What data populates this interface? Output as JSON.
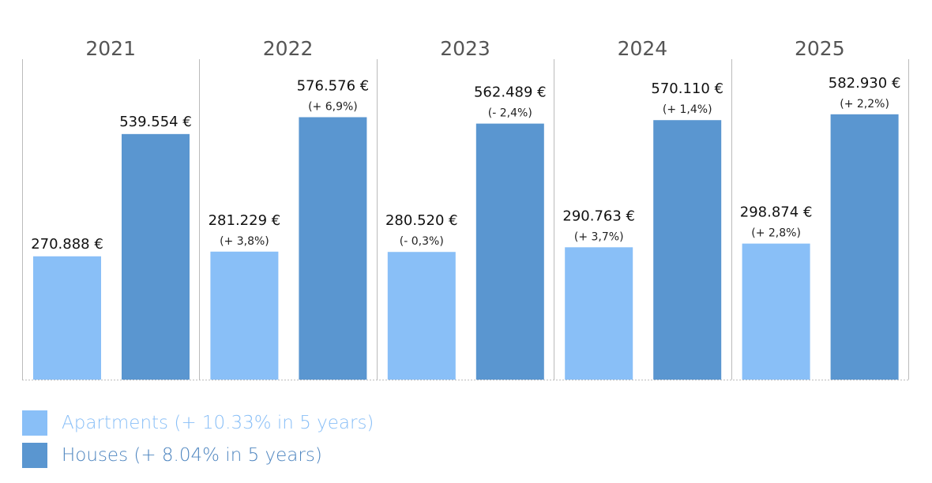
{
  "chart_data": {
    "type": "bar",
    "categories": [
      "2021",
      "2022",
      "2023",
      "2024",
      "2025"
    ],
    "series": [
      {
        "name": "Apartments (+ 10.33% in 5 years)",
        "values": [
          270888,
          281229,
          280520,
          290763,
          298874
        ],
        "labels": [
          "270.888 €",
          "281.229 €",
          "280.520 €",
          "290.763 €",
          "298.874 €"
        ],
        "changes": [
          "",
          "(+ 3,8%)",
          "(- 0,3%)",
          "(+ 3,7%)",
          "(+ 2,8%)"
        ],
        "color": "#89BFF7"
      },
      {
        "name": "Houses (+ 8.04% in 5 years)",
        "values": [
          539554,
          576576,
          562489,
          570110,
          582930
        ],
        "labels": [
          "539.554 €",
          "576.576 €",
          "562.489 €",
          "570.110 €",
          "582.930 €"
        ],
        "changes": [
          "",
          "(+ 6,9%)",
          "(- 2,4%)",
          "(+ 1,4%)",
          "(+ 2,2%)"
        ],
        "color": "#5A96D0"
      }
    ],
    "ylim": [
      0,
      704000
    ],
    "grid": false,
    "legend_placement": "bottom-left",
    "year_label_color": "#555555",
    "divider_color": "#BBBBBB"
  }
}
